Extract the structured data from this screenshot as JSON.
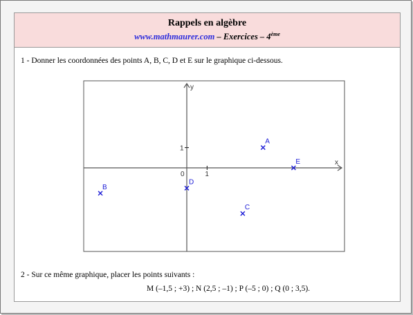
{
  "header": {
    "title": "Rappels en algèbre",
    "site": "www.mathmaurer.com",
    "subtitle_rest": " – Exercices – 4",
    "grade_sup": "ème"
  },
  "question1": "1 - Donner les coordonnées des points A, B, C, D et E sur le graphique ci-dessous.",
  "question2": "2 - Sur ce même graphique, placer les points suivants :",
  "points_to_place": "M (–1,5 ; +3) ; N (2,5 ; –1) ; P (–5 ; 0) ; Q (0 ; 3,5).",
  "graph": {
    "axis_labels": {
      "x": "x",
      "y": "y",
      "origin": "0",
      "x_one": "1",
      "y_one": "1"
    },
    "xlim": [
      -5,
      8
    ],
    "ylim": [
      -3,
      4
    ],
    "grid_step": 0.25,
    "point_color": "#1a1ad6",
    "points": [
      {
        "label": "A",
        "x": 3.75,
        "y": 1
      },
      {
        "label": "B",
        "x": -4.25,
        "y": -1.25
      },
      {
        "label": "C",
        "x": 2.75,
        "y": -2.25
      },
      {
        "label": "D",
        "x": 0,
        "y": -1
      },
      {
        "label": "E",
        "x": 5.25,
        "y": 0
      }
    ]
  }
}
